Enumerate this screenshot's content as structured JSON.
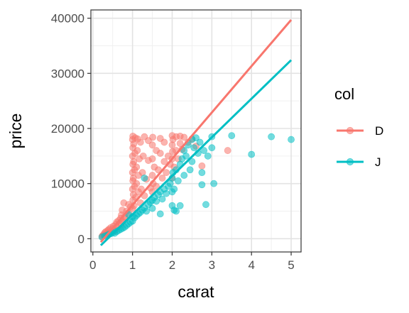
{
  "chart_data": {
    "type": "scatter",
    "xlabel": "carat",
    "ylabel": "price",
    "xlim": [
      -0.05,
      5.25
    ],
    "ylim": [
      -2400,
      41500
    ],
    "x_ticks": [
      0,
      1,
      2,
      3,
      4,
      5
    ],
    "x_tick_labels": [
      "0",
      "1",
      "2",
      "3",
      "4",
      "5"
    ],
    "y_ticks": [
      0,
      10000,
      20000,
      30000,
      40000
    ],
    "y_tick_labels": [
      "0",
      "10000",
      "20000",
      "30000",
      "40000"
    ],
    "grid": true,
    "legend": {
      "title": "col",
      "position": "right"
    },
    "series": [
      {
        "name": "D",
        "color": "#F8766D",
        "fit": {
          "slope": 8400,
          "intercept": -2300,
          "x_range": [
            0.2,
            5.0
          ]
        },
        "points": [
          [
            0.23,
            400
          ],
          [
            0.25,
            600
          ],
          [
            0.28,
            800
          ],
          [
            0.3,
            1100
          ],
          [
            0.31,
            700
          ],
          [
            0.33,
            1300
          ],
          [
            0.35,
            900
          ],
          [
            0.38,
            1500
          ],
          [
            0.4,
            1700
          ],
          [
            0.42,
            1200
          ],
          [
            0.45,
            2000
          ],
          [
            0.5,
            1800
          ],
          [
            0.52,
            2300
          ],
          [
            0.55,
            1400
          ],
          [
            0.58,
            2600
          ],
          [
            0.6,
            3000
          ],
          [
            0.62,
            2100
          ],
          [
            0.65,
            3300
          ],
          [
            0.7,
            3700
          ],
          [
            0.71,
            2600
          ],
          [
            0.72,
            4300
          ],
          [
            0.74,
            5200
          ],
          [
            0.75,
            3100
          ],
          [
            0.78,
            6500
          ],
          [
            0.8,
            4000
          ],
          [
            0.82,
            3600
          ],
          [
            0.85,
            5000
          ],
          [
            0.9,
            4700
          ],
          [
            0.9,
            6200
          ],
          [
            0.95,
            5800
          ],
          [
            1.0,
            5500
          ],
          [
            1.0,
            9000
          ],
          [
            1.0,
            12000
          ],
          [
            1.0,
            15000
          ],
          [
            1.0,
            18000
          ],
          [
            1.01,
            7000
          ],
          [
            1.01,
            10500
          ],
          [
            1.01,
            13500
          ],
          [
            1.01,
            16500
          ],
          [
            1.01,
            18600
          ],
          [
            1.02,
            8000
          ],
          [
            1.02,
            11000
          ],
          [
            1.03,
            14000
          ],
          [
            1.03,
            17200
          ],
          [
            1.04,
            6000
          ],
          [
            1.05,
            9500
          ],
          [
            1.05,
            12500
          ],
          [
            1.06,
            15500
          ],
          [
            1.07,
            18300
          ],
          [
            1.08,
            7500
          ],
          [
            1.1,
            10000
          ],
          [
            1.1,
            13000
          ],
          [
            1.12,
            16000
          ],
          [
            1.13,
            18100
          ],
          [
            1.15,
            8500
          ],
          [
            1.15,
            11500
          ],
          [
            1.17,
            14500
          ],
          [
            1.2,
            17500
          ],
          [
            1.2,
            6500
          ],
          [
            1.22,
            9000
          ],
          [
            1.25,
            12000
          ],
          [
            1.27,
            15000
          ],
          [
            1.3,
            18500
          ],
          [
            1.3,
            7800
          ],
          [
            1.35,
            10800
          ],
          [
            1.4,
            14200
          ],
          [
            1.4,
            17800
          ],
          [
            1.45,
            9200
          ],
          [
            1.5,
            8500
          ],
          [
            1.5,
            11500
          ],
          [
            1.5,
            14500
          ],
          [
            1.5,
            17000
          ],
          [
            1.51,
            18400
          ],
          [
            1.52,
            10000
          ],
          [
            1.55,
            13000
          ],
          [
            1.6,
            16000
          ],
          [
            1.6,
            9500
          ],
          [
            1.65,
            12500
          ],
          [
            1.7,
            15500
          ],
          [
            1.7,
            18200
          ],
          [
            1.75,
            11000
          ],
          [
            1.8,
            14000
          ],
          [
            1.8,
            17500
          ],
          [
            1.85,
            12000
          ],
          [
            1.9,
            15000
          ],
          [
            1.95,
            13500
          ],
          [
            2.0,
            11000
          ],
          [
            2.0,
            14500
          ],
          [
            2.0,
            17000
          ],
          [
            2.0,
            18700
          ],
          [
            2.01,
            15800
          ],
          [
            2.02,
            18000
          ],
          [
            2.05,
            13000
          ],
          [
            2.1,
            16000
          ],
          [
            2.1,
            18500
          ],
          [
            2.15,
            14500
          ],
          [
            2.2,
            17300
          ],
          [
            2.2,
            18600
          ],
          [
            2.25,
            16200
          ],
          [
            2.3,
            18400
          ],
          [
            2.4,
            17500
          ],
          [
            2.5,
            18100
          ],
          [
            2.6,
            16800
          ],
          [
            2.75,
            13200
          ],
          [
            3.4,
            16000
          ]
        ]
      },
      {
        "name": "J",
        "color": "#00BFC4",
        "fit": {
          "slope": 7000,
          "intercept": -2600,
          "x_range": [
            0.2,
            5.0
          ]
        },
        "points": [
          [
            0.23,
            300
          ],
          [
            0.3,
            500
          ],
          [
            0.35,
            600
          ],
          [
            0.4,
            800
          ],
          [
            0.45,
            900
          ],
          [
            0.5,
            1100
          ],
          [
            0.55,
            1000
          ],
          [
            0.6,
            1300
          ],
          [
            0.65,
            1500
          ],
          [
            0.7,
            1700
          ],
          [
            0.75,
            1900
          ],
          [
            0.8,
            2100
          ],
          [
            0.85,
            2400
          ],
          [
            0.9,
            2700
          ],
          [
            0.95,
            3000
          ],
          [
            1.0,
            3200
          ],
          [
            1.0,
            4000
          ],
          [
            1.05,
            3800
          ],
          [
            1.1,
            4200
          ],
          [
            1.15,
            4500
          ],
          [
            1.2,
            4800
          ],
          [
            1.25,
            5200
          ],
          [
            1.3,
            5600
          ],
          [
            1.35,
            5000
          ],
          [
            1.4,
            6200
          ],
          [
            1.45,
            6600
          ],
          [
            1.5,
            5500
          ],
          [
            1.5,
            7000
          ],
          [
            1.55,
            7500
          ],
          [
            1.6,
            6800
          ],
          [
            1.65,
            8000
          ],
          [
            1.7,
            8500
          ],
          [
            1.75,
            7200
          ],
          [
            1.8,
            9000
          ],
          [
            1.85,
            8200
          ],
          [
            1.9,
            9500
          ],
          [
            1.95,
            10000
          ],
          [
            2.0,
            6000
          ],
          [
            2.0,
            8500
          ],
          [
            2.0,
            11000
          ],
          [
            2.02,
            12000
          ],
          [
            2.05,
            9000
          ],
          [
            2.1,
            12500
          ],
          [
            2.1,
            5000
          ],
          [
            2.15,
            10500
          ],
          [
            2.2,
            13500
          ],
          [
            2.2,
            6000
          ],
          [
            2.25,
            14500
          ],
          [
            2.3,
            11500
          ],
          [
            2.3,
            16000
          ],
          [
            2.35,
            15000
          ],
          [
            2.4,
            17000
          ],
          [
            2.45,
            12500
          ],
          [
            2.5,
            18000
          ],
          [
            2.5,
            14000
          ],
          [
            2.55,
            16500
          ],
          [
            2.6,
            18300
          ],
          [
            2.65,
            15500
          ],
          [
            2.7,
            17500
          ],
          [
            2.75,
            12000
          ],
          [
            2.8,
            16000
          ],
          [
            2.9,
            15000
          ],
          [
            3.0,
            18500
          ],
          [
            3.0,
            16500
          ],
          [
            3.05,
            10000
          ],
          [
            3.5,
            18700
          ],
          [
            4.0,
            15300
          ],
          [
            4.5,
            18500
          ],
          [
            5.0,
            18000
          ],
          [
            2.85,
            6200
          ],
          [
            2.75,
            9800
          ],
          [
            1.3,
            11000
          ],
          [
            1.7,
            4500
          ],
          [
            2.05,
            5200
          ],
          [
            0.9,
            4400
          ]
        ]
      }
    ]
  }
}
